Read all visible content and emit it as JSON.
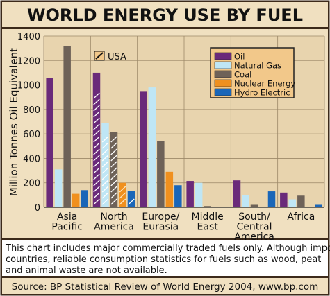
{
  "chart_data": {
    "type": "bar",
    "title": "WORLD ENERGY USE BY FUEL",
    "ylabel": "Million Tonnes Oil Equivalent",
    "xlabel": "",
    "ylim": [
      0,
      1400
    ],
    "yticks": [
      "0",
      "200",
      "400",
      "600",
      "800",
      "1000",
      "1200",
      "1400"
    ],
    "grid": true,
    "legend_position": "top-right",
    "categories": [
      [
        "Asia",
        "Pacific"
      ],
      [
        "North",
        "America"
      ],
      [
        "Europe/",
        "Eurasia"
      ],
      [
        "Middle",
        "East"
      ],
      [
        "South/",
        "Central",
        "America"
      ],
      [
        "Africa"
      ]
    ],
    "series": [
      {
        "name": "Oil",
        "color": "#6a2a7a",
        "values": [
          1055,
          1100,
          950,
          215,
          220,
          120
        ]
      },
      {
        "name": "Natural Gas",
        "color": "#bfe6f5",
        "values": [
          310,
          690,
          980,
          200,
          100,
          65
        ]
      },
      {
        "name": "Coal",
        "color": "#6e6258",
        "values": [
          1315,
          615,
          540,
          10,
          20,
          95
        ]
      },
      {
        "name": "Nuclear Energy",
        "color": "#f0901e",
        "values": [
          110,
          200,
          290,
          0,
          5,
          5
        ]
      },
      {
        "name": "Hydro  Electric",
        "color": "#1a66b8",
        "values": [
          140,
          135,
          180,
          5,
          130,
          20
        ]
      }
    ],
    "highlight_legend": "USA",
    "highlight_values": {
      "Oil": 910,
      "Natural Gas": 565,
      "Coal": 545,
      "Nuclear Energy": 180,
      "Hydro  Electric": 60
    },
    "footnote": "This chart includes major commercially traded fuels only. Although important in many countries, reliable consumption statistics for fuels such as wood, peat and animal waste are not available.",
    "source": "Source: BP Statistical Review of World Energy 2004, www.bp.com"
  },
  "colors": {
    "frame": "#3c2a1a",
    "panel": "#f0e0c0",
    "plot": "#e8d4ae",
    "grid": "#9c8868",
    "legend": "#f2c88a",
    "usa_label": "#f2c88a"
  }
}
